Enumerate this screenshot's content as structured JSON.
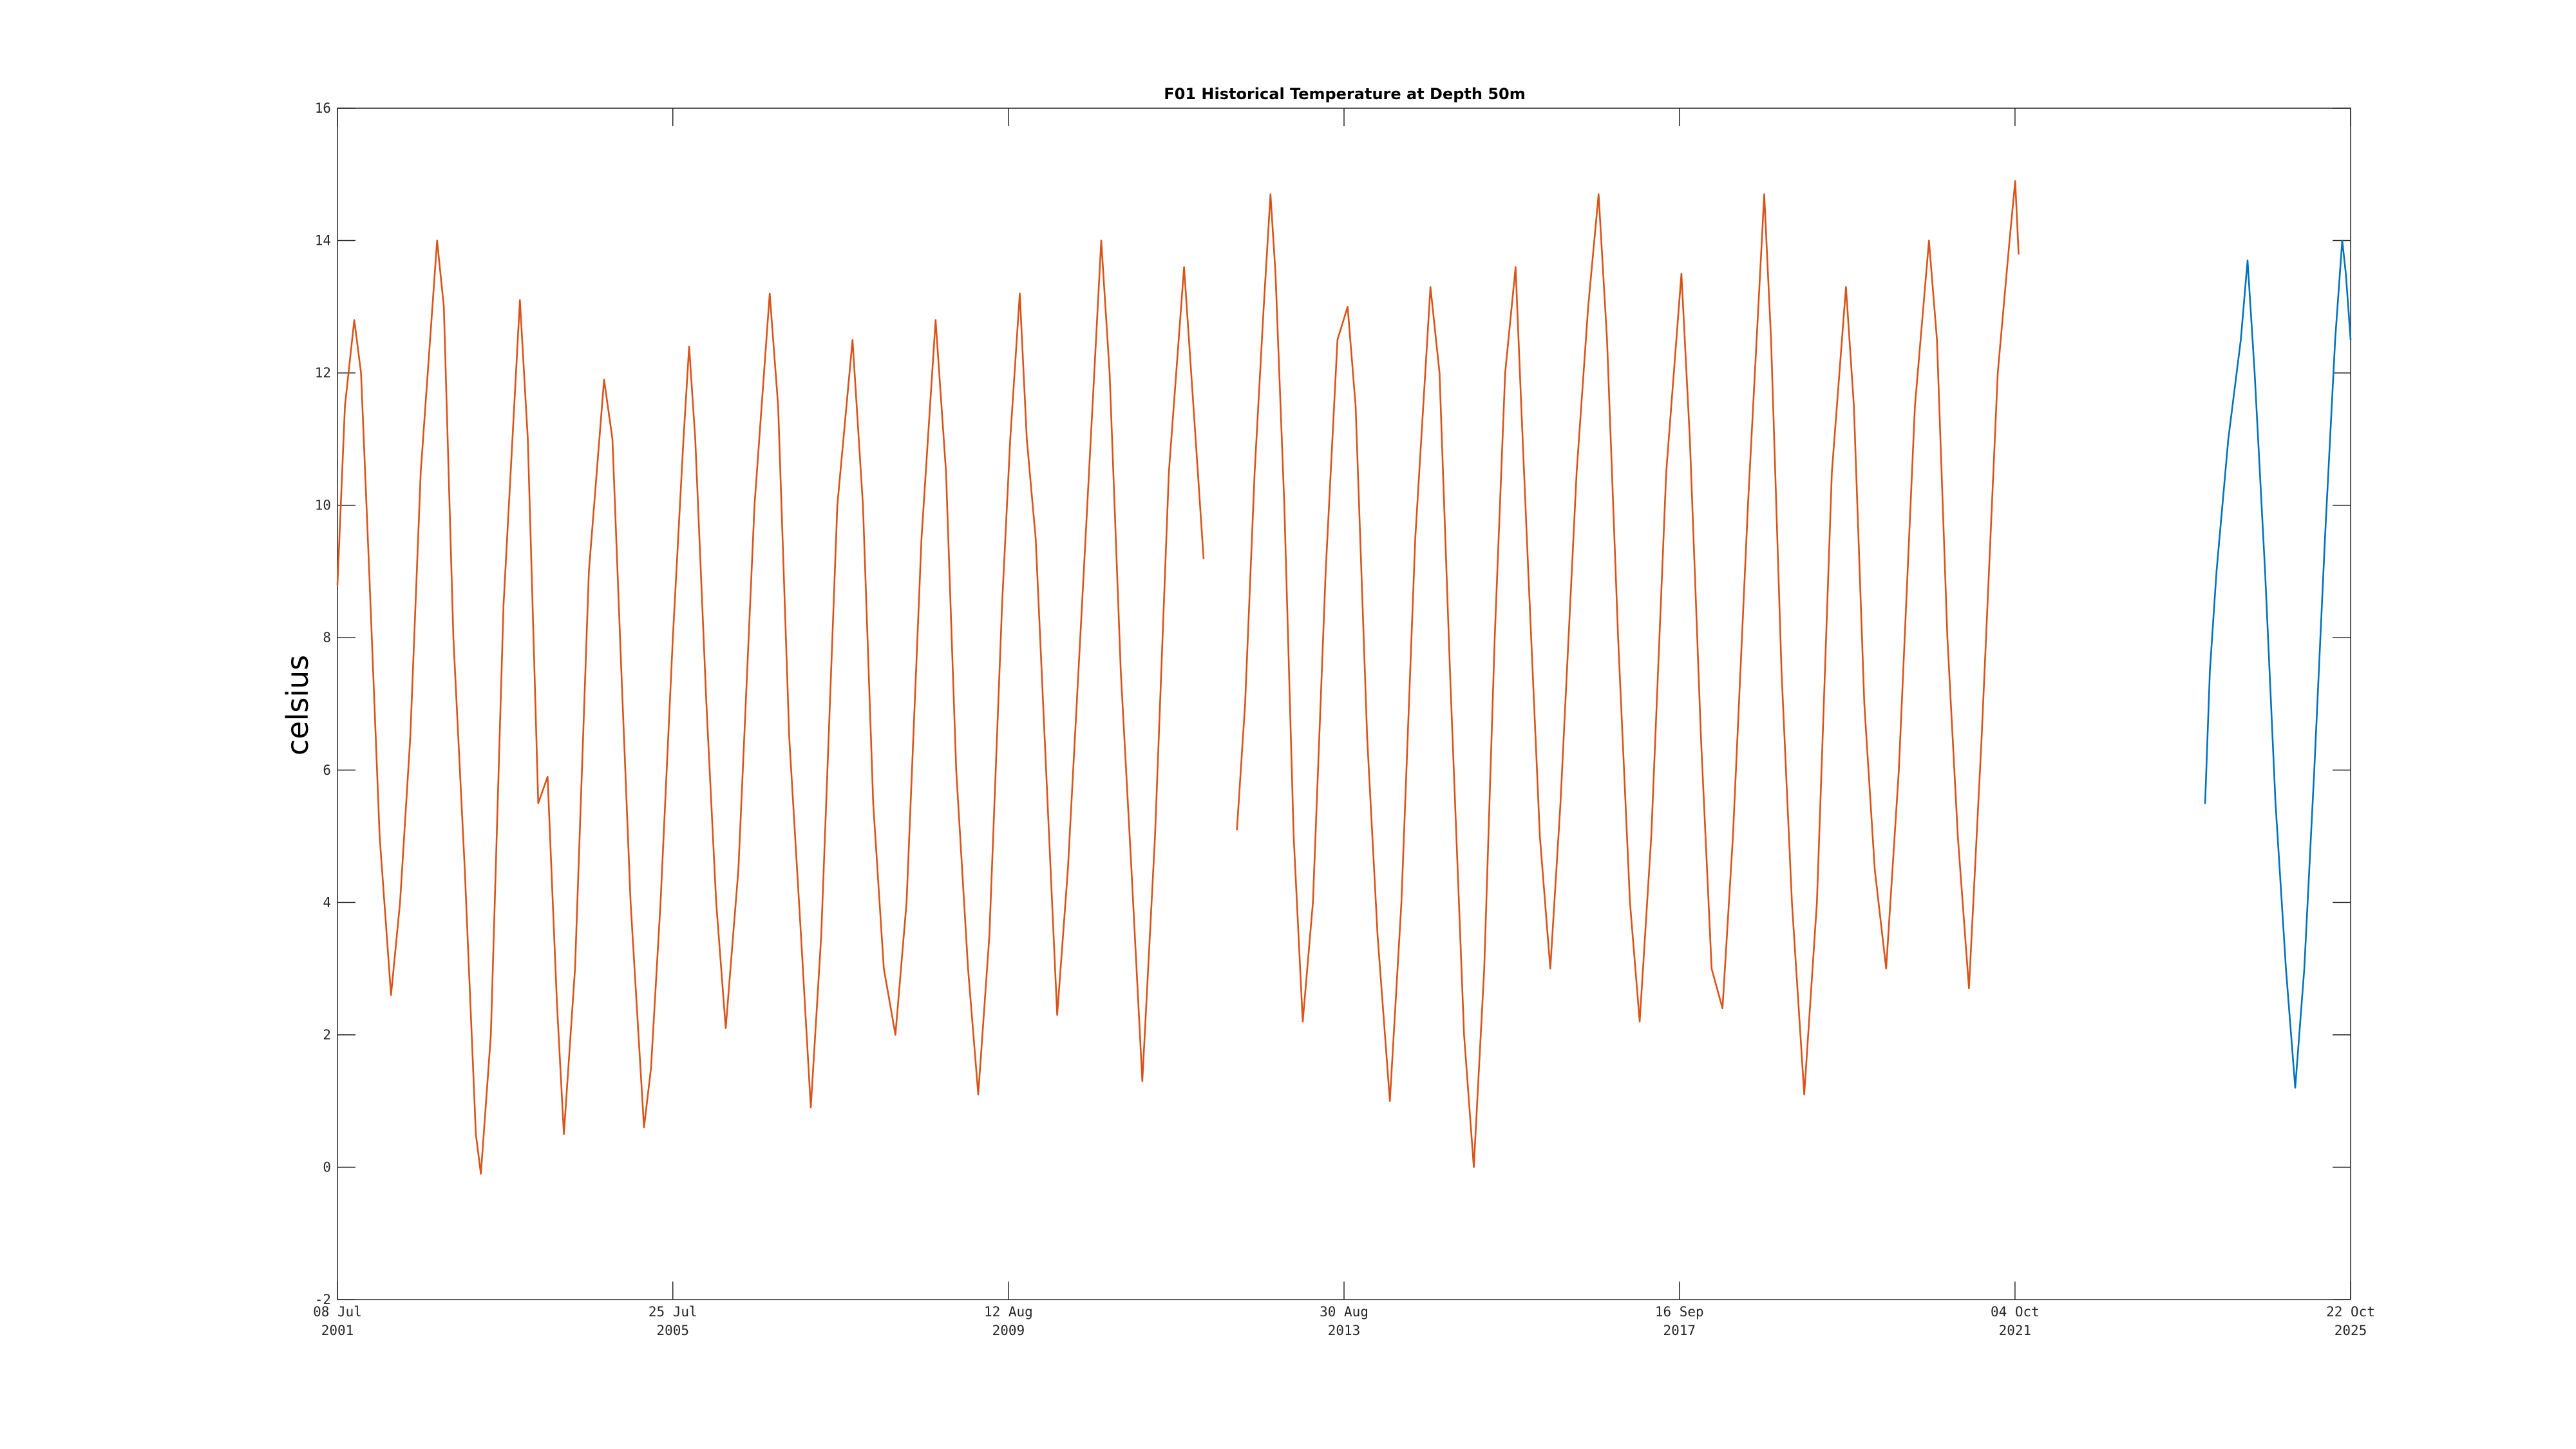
{
  "chart_data": {
    "type": "line",
    "title": "F01 Historical Temperature at Depth 50m",
    "ylabel": "celsius",
    "xlabel": "",
    "ylim": [
      -2,
      16
    ],
    "yticks": [
      -2,
      0,
      2,
      4,
      6,
      8,
      10,
      12,
      14,
      16
    ],
    "xlim": [
      "2001-07-08",
      "2025-10-22"
    ],
    "xticks": [
      {
        "date": "2001-07-08",
        "line1": "08 Jul",
        "line2": "2001"
      },
      {
        "date": "2005-07-25",
        "line1": "25 Jul",
        "line2": "2005"
      },
      {
        "date": "2009-08-12",
        "line1": "12 Aug",
        "line2": "2009"
      },
      {
        "date": "2013-08-30",
        "line1": "30 Aug",
        "line2": "2013"
      },
      {
        "date": "2017-09-16",
        "line1": "16 Sep",
        "line2": "2017"
      },
      {
        "date": "2021-10-04",
        "line1": "04 Oct",
        "line2": "2021"
      },
      {
        "date": "2025-10-22",
        "line1": "22 Oct",
        "line2": "2025"
      }
    ],
    "grid": false,
    "series": [
      {
        "color": "#D95319",
        "segments": [
          [
            [
              "2001-07-08",
              8.8
            ],
            [
              "2001-08-10",
              11.5
            ],
            [
              "2001-09-20",
              12.8
            ],
            [
              "2001-10-20",
              12.0
            ],
            [
              "2001-11-25",
              9.0
            ],
            [
              "2002-01-10",
              5.0
            ],
            [
              "2002-03-01",
              2.6
            ],
            [
              "2002-04-10",
              4.0
            ],
            [
              "2002-05-25",
              6.5
            ],
            [
              "2002-07-10",
              10.5
            ],
            [
              "2002-09-20",
              14.0
            ],
            [
              "2002-10-20",
              13.0
            ],
            [
              "2002-12-01",
              8.0
            ],
            [
              "2003-01-20",
              4.5
            ],
            [
              "2003-03-10",
              0.5
            ],
            [
              "2003-04-01",
              -0.1
            ],
            [
              "2003-05-15",
              2.0
            ],
            [
              "2003-07-10",
              8.5
            ],
            [
              "2003-09-20",
              13.1
            ],
            [
              "2003-10-25",
              11.0
            ],
            [
              "2003-12-10",
              5.5
            ],
            [
              "2004-01-20",
              5.9
            ],
            [
              "2004-03-01",
              2.5
            ],
            [
              "2004-04-01",
              0.5
            ],
            [
              "2004-05-20",
              3.0
            ],
            [
              "2004-07-20",
              9.0
            ],
            [
              "2004-09-25",
              11.9
            ],
            [
              "2004-11-01",
              11.0
            ],
            [
              "2004-12-10",
              7.5
            ],
            [
              "2005-01-20",
              4.0
            ],
            [
              "2005-03-20",
              0.6
            ],
            [
              "2005-04-20",
              1.5
            ],
            [
              "2005-06-01",
              4.0
            ],
            [
              "2005-07-25",
              8.0
            ],
            [
              "2005-09-10",
              11.0
            ],
            [
              "2005-10-05",
              12.4
            ],
            [
              "2005-11-01",
              11.0
            ],
            [
              "2005-12-20",
              7.0
            ],
            [
              "2006-02-01",
              4.0
            ],
            [
              "2006-03-15",
              2.1
            ],
            [
              "2006-05-10",
              4.5
            ],
            [
              "2006-07-20",
              10.0
            ],
            [
              "2006-09-25",
              13.2
            ],
            [
              "2006-11-01",
              11.5
            ],
            [
              "2006-12-20",
              6.5
            ],
            [
              "2007-02-10",
              3.5
            ],
            [
              "2007-03-25",
              0.9
            ],
            [
              "2007-05-10",
              3.5
            ],
            [
              "2007-07-20",
              10.0
            ],
            [
              "2007-09-25",
              12.5
            ],
            [
              "2007-11-10",
              10.0
            ],
            [
              "2007-12-25",
              5.5
            ],
            [
              "2008-02-10",
              3.0
            ],
            [
              "2008-04-01",
              2.0
            ],
            [
              "2008-05-20",
              4.0
            ],
            [
              "2008-07-25",
              9.5
            ],
            [
              "2008-09-25",
              12.8
            ],
            [
              "2008-11-10",
              10.5
            ],
            [
              "2008-12-25",
              6.0
            ],
            [
              "2009-02-15",
              3.0
            ],
            [
              "2009-04-01",
              1.1
            ],
            [
              "2009-05-20",
              3.5
            ],
            [
              "2009-07-15",
              8.5
            ],
            [
              "2009-08-20",
              11.0
            ],
            [
              "2009-10-01",
              13.2
            ],
            [
              "2009-11-01",
              11.0
            ],
            [
              "2009-12-10",
              9.5
            ],
            [
              "2010-01-25",
              6.0
            ],
            [
              "2010-03-15",
              2.3
            ],
            [
              "2010-05-01",
              4.5
            ],
            [
              "2010-07-10",
              9.0
            ],
            [
              "2010-09-25",
              14.0
            ],
            [
              "2010-11-01",
              12.0
            ],
            [
              "2010-12-20",
              7.5
            ],
            [
              "2011-02-05",
              4.5
            ],
            [
              "2011-03-25",
              1.3
            ],
            [
              "2011-05-20",
              5.0
            ],
            [
              "2011-07-20",
              10.5
            ],
            [
              "2011-09-25",
              13.6
            ],
            [
              "2011-11-15",
              11.0
            ],
            [
              "2011-12-20",
              9.2
            ]
          ],
          [
            [
              "2012-05-15",
              5.1
            ],
            [
              "2012-06-20",
              7.0
            ],
            [
              "2012-08-01",
              10.5
            ],
            [
              "2012-09-10",
              13.0
            ],
            [
              "2012-10-10",
              14.7
            ],
            [
              "2012-11-01",
              13.5
            ],
            [
              "2012-12-10",
              10.0
            ],
            [
              "2013-01-20",
              5.0
            ],
            [
              "2013-03-01",
              2.2
            ],
            [
              "2013-04-15",
              4.0
            ],
            [
              "2013-06-10",
              9.0
            ],
            [
              "2013-08-01",
              12.5
            ],
            [
              "2013-09-15",
              13.0
            ],
            [
              "2013-10-20",
              11.5
            ],
            [
              "2013-12-10",
              6.5
            ],
            [
              "2014-01-25",
              3.5
            ],
            [
              "2014-03-20",
              1.0
            ],
            [
              "2014-05-10",
              4.0
            ],
            [
              "2014-07-10",
              9.5
            ],
            [
              "2014-09-15",
              13.3
            ],
            [
              "2014-10-25",
              12.0
            ],
            [
              "2014-12-10",
              7.5
            ],
            [
              "2015-02-10",
              2.0
            ],
            [
              "2015-03-25",
              0.0
            ],
            [
              "2015-05-10",
              3.0
            ],
            [
              "2015-06-25",
              8.0
            ],
            [
              "2015-08-10",
              12.0
            ],
            [
              "2015-09-25",
              13.6
            ],
            [
              "2015-10-20",
              11.5
            ],
            [
              "2015-11-20",
              9.0
            ],
            [
              "2016-01-10",
              5.0
            ],
            [
              "2016-02-25",
              3.0
            ],
            [
              "2016-04-10",
              5.5
            ],
            [
              "2016-06-20",
              10.5
            ],
            [
              "2016-08-10",
              13.0
            ],
            [
              "2016-09-25",
              14.7
            ],
            [
              "2016-11-01",
              12.5
            ],
            [
              "2016-12-20",
              8.0
            ],
            [
              "2017-02-10",
              4.0
            ],
            [
              "2017-03-25",
              2.2
            ],
            [
              "2017-05-15",
              5.0
            ],
            [
              "2017-07-20",
              10.5
            ],
            [
              "2017-09-25",
              13.5
            ],
            [
              "2017-11-01",
              11.0
            ],
            [
              "2017-12-20",
              6.5
            ],
            [
              "2018-02-05",
              3.0
            ],
            [
              "2018-03-25",
              2.4
            ],
            [
              "2018-05-10",
              5.0
            ],
            [
              "2018-07-15",
              10.0
            ],
            [
              "2018-09-25",
              14.7
            ],
            [
              "2018-10-25",
              12.5
            ],
            [
              "2018-12-10",
              7.5
            ],
            [
              "2019-01-25",
              4.0
            ],
            [
              "2019-03-20",
              1.1
            ],
            [
              "2019-05-15",
              4.0
            ],
            [
              "2019-07-20",
              10.5
            ],
            [
              "2019-09-20",
              13.3
            ],
            [
              "2019-10-25",
              11.5
            ],
            [
              "2019-12-10",
              7.0
            ],
            [
              "2020-01-25",
              4.5
            ],
            [
              "2020-03-15",
              3.0
            ],
            [
              "2020-05-10",
              6.0
            ],
            [
              "2020-07-20",
              11.5
            ],
            [
              "2020-09-20",
              14.0
            ],
            [
              "2020-10-25",
              12.5
            ],
            [
              "2020-12-10",
              8.0
            ],
            [
              "2021-01-25",
              5.0
            ],
            [
              "2021-03-15",
              2.7
            ],
            [
              "2021-05-10",
              6.5
            ],
            [
              "2021-07-20",
              12.0
            ],
            [
              "2021-09-10",
              14.0
            ],
            [
              "2021-10-05",
              14.9
            ],
            [
              "2021-10-20",
              13.8
            ]
          ]
        ]
      },
      {
        "color": "#0072BD",
        "segments": [
          [
            [
              "2024-01-20",
              5.5
            ],
            [
              "2024-02-10",
              7.5
            ],
            [
              "2024-03-10",
              9.0
            ],
            [
              "2024-05-01",
              11.0
            ],
            [
              "2024-06-25",
              12.5
            ],
            [
              "2024-07-25",
              13.7
            ],
            [
              "2024-08-25",
              12.0
            ],
            [
              "2024-10-10",
              9.0
            ],
            [
              "2024-11-25",
              5.5
            ],
            [
              "2025-01-10",
              3.0
            ],
            [
              "2025-02-20",
              1.2
            ],
            [
              "2025-04-01",
              3.0
            ],
            [
              "2025-05-15",
              6.0
            ],
            [
              "2025-07-01",
              9.5
            ],
            [
              "2025-08-15",
              12.5
            ],
            [
              "2025-09-15",
              14.0
            ],
            [
              "2025-10-01",
              13.5
            ],
            [
              "2025-10-22",
              12.5
            ]
          ]
        ]
      }
    ]
  }
}
